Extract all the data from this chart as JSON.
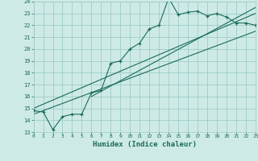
{
  "xlabel": "Humidex (Indice chaleur)",
  "ylabel": "",
  "bg_color": "#ceeae6",
  "grid_color": "#9ecdc8",
  "line_color": "#1a6b5a",
  "xmin": 0,
  "xmax": 23,
  "ymin": 13,
  "ymax": 24,
  "main_x": [
    0,
    1,
    2,
    3,
    4,
    5,
    6,
    7,
    8,
    9,
    10,
    11,
    12,
    13,
    14,
    15,
    16,
    17,
    18,
    19,
    20,
    21,
    22,
    23
  ],
  "main_y": [
    14.8,
    14.7,
    13.2,
    14.3,
    14.5,
    14.5,
    16.3,
    16.5,
    18.8,
    19.0,
    20.0,
    20.5,
    21.7,
    22.0,
    24.3,
    22.9,
    23.1,
    23.2,
    22.8,
    23.0,
    22.7,
    22.2,
    22.2,
    22.0
  ],
  "line1_x": [
    0,
    23
  ],
  "line1_y": [
    15.0,
    23.0
  ],
  "line2_x": [
    0,
    23
  ],
  "line2_y": [
    14.5,
    21.5
  ],
  "line3_x": [
    6,
    23
  ],
  "line3_y": [
    16.0,
    23.5
  ]
}
